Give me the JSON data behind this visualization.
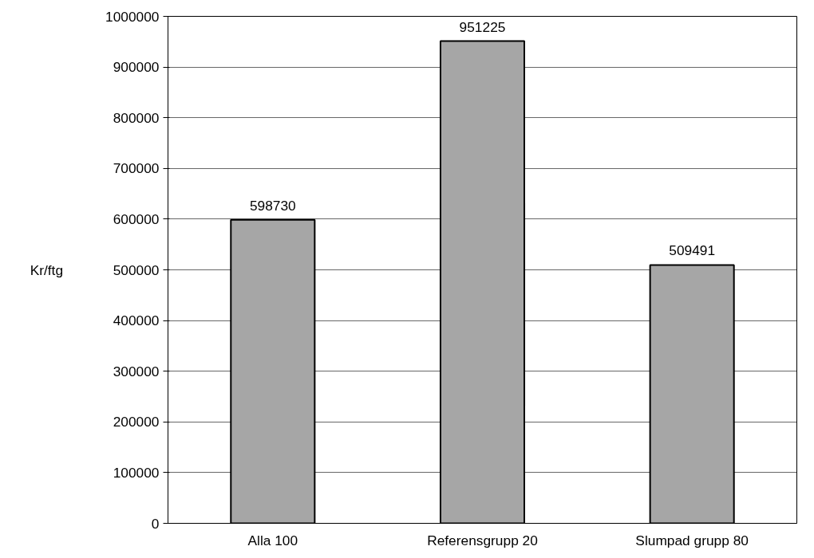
{
  "chart_data": {
    "type": "bar",
    "ylabel": "Kr/ftg",
    "categories": [
      "Alla 100",
      "Referensgrupp 20",
      "Slumpad grupp 80"
    ],
    "values": [
      598730,
      951225,
      509491
    ],
    "color": "#a6a6a6",
    "ylim": [
      0,
      1000000
    ],
    "yticks": [
      0,
      100000,
      200000,
      300000,
      400000,
      500000,
      600000,
      700000,
      800000,
      900000,
      1000000
    ],
    "grid": "y",
    "data_labels": true
  }
}
